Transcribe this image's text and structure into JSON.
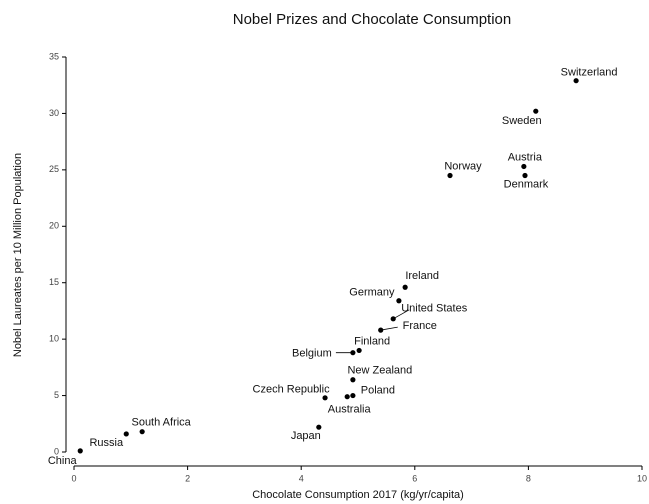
{
  "chart_data": {
    "type": "scatter",
    "title": "Nobel Prizes and Chocolate Consumption",
    "x_label": "Chocolate Consumption 2017 (kg/yr/capita)",
    "y_label": "Nobel Laureates per 10 Million Population",
    "color": "#000000",
    "xlim": [
      0,
      10
    ],
    "xticks": [
      0,
      2,
      4,
      6,
      8,
      10
    ],
    "ylim": [
      0,
      35
    ],
    "yticks": [
      0,
      5,
      10,
      15,
      20,
      25,
      30,
      35
    ],
    "labels": [
      "Switzerland",
      "Sweden",
      "Norway",
      "Austria",
      "Denmark",
      "Ireland",
      "Germany",
      "United States",
      "France",
      "Finland",
      "Belgium",
      "New Zealand",
      "Poland",
      "Australia",
      "Czech Republic",
      "Japan",
      "South Africa",
      "Russia",
      "China"
    ],
    "x": [
      8.84,
      8.13,
      6.62,
      7.92,
      7.94,
      5.83,
      5.72,
      5.62,
      5.4,
      5.02,
      4.91,
      4.91,
      4.91,
      4.81,
      4.42,
      4.31,
      1.2,
      0.92,
      0.11
    ],
    "y": [
      32.9,
      30.2,
      24.5,
      25.3,
      24.5,
      14.6,
      13.4,
      11.8,
      10.8,
      9.0,
      8.8,
      6.4,
      5.0,
      4.9,
      4.8,
      2.2,
      1.8,
      1.6,
      0.1
    ]
  }
}
